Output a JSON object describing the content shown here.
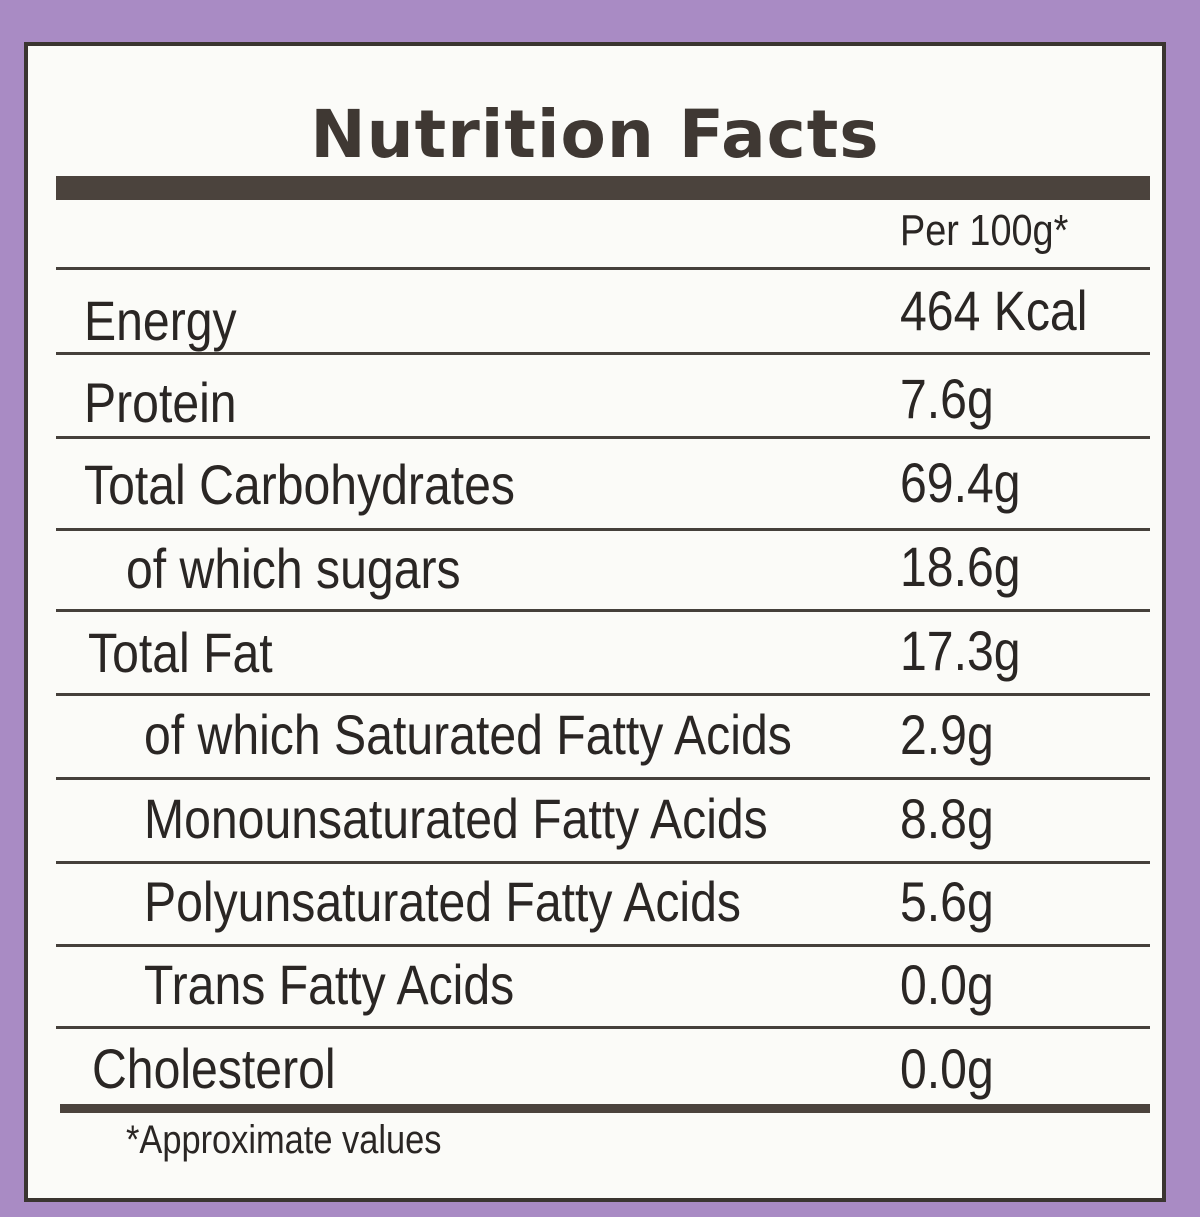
{
  "label": {
    "title": "Nutrition Facts",
    "serving_header": "Per 100g*",
    "rows": [
      {
        "name": "Energy",
        "value": "464 Kcal"
      },
      {
        "name": "Protein",
        "value": "7.6g"
      },
      {
        "name": "Total Carbohydrates",
        "value": "69.4g"
      },
      {
        "name": "of which sugars",
        "value": "18.6g"
      },
      {
        "name": "Total Fat",
        "value": "17.3g"
      },
      {
        "name": "of which Saturated Fatty Acids",
        "value": "2.9g"
      },
      {
        "name": "Monounsaturated Fatty Acids",
        "value": "8.8g"
      },
      {
        "name": "Polyunsaturated Fatty Acids",
        "value": "5.6g"
      },
      {
        "name": "Trans Fatty Acids",
        "value": "0.0g"
      },
      {
        "name": "Cholesterol",
        "value": "0.0g"
      }
    ],
    "footnote": "*Approximate values"
  },
  "colors": {
    "background": "#a98bc4",
    "panel": "#fbfbf8",
    "ink": "#2a2624",
    "rule": "#4b433d"
  }
}
